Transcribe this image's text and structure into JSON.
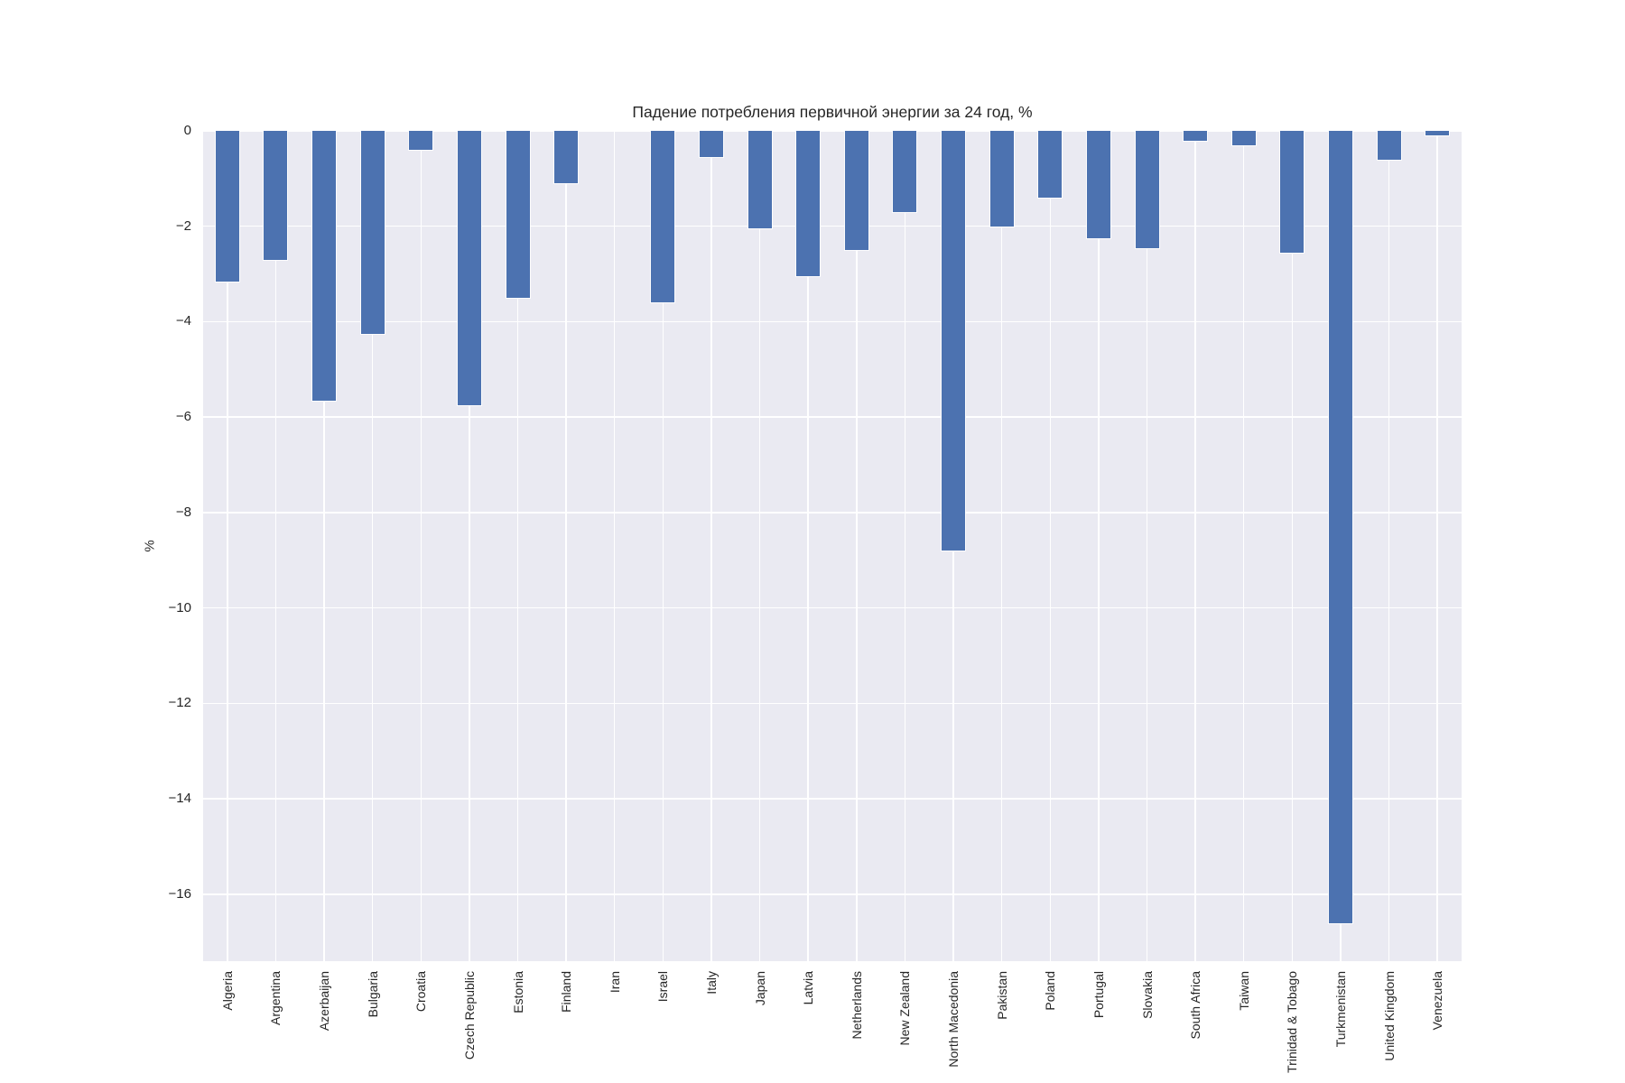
{
  "chart_data": {
    "type": "bar",
    "title": "Падение потребления первичной энергии за 24 год, %",
    "xlabel": "",
    "ylabel": "%",
    "categories": [
      "Algeria",
      "Argentina",
      "Azerbaijan",
      "Bulgaria",
      "Croatia",
      "Czech Republic",
      "Estonia",
      "Finland",
      "Iran",
      "Israel",
      "Italy",
      "Japan",
      "Latvia",
      "Netherlands",
      "New Zealand",
      "North Macedonia",
      "Pakistan",
      "Poland",
      "Portugal",
      "Slovakia",
      "South Africa",
      "Taiwan",
      "Trinidad & Tobago",
      "Turkmenistan",
      "United Kingdom",
      "Venezuela"
    ],
    "values": [
      -3.15,
      -2.7,
      -5.65,
      -4.25,
      -0.4,
      -5.75,
      -3.5,
      -1.1,
      0,
      -3.6,
      -0.55,
      -2.05,
      -3.05,
      -2.5,
      -1.7,
      -8.8,
      -2.0,
      -1.4,
      -2.25,
      -2.45,
      -0.2,
      -0.3,
      -2.55,
      -16.6,
      -0.6,
      -0.1
    ],
    "ylim": [
      -17.4,
      0
    ],
    "yticks": [
      0,
      -2,
      -4,
      -6,
      -8,
      -10,
      -12,
      -14,
      -16
    ],
    "ytick_labels": [
      "0",
      "−2",
      "−4",
      "−6",
      "−8",
      "−10",
      "−12",
      "−14",
      "−16"
    ],
    "grid": true,
    "legend_position": "none",
    "colors": {
      "bar": "#4C72B0",
      "plot_background": "#EAEAF2",
      "gridline": "#FFFFFF",
      "text": "#262626",
      "figure_background": "#FFFFFF"
    }
  }
}
